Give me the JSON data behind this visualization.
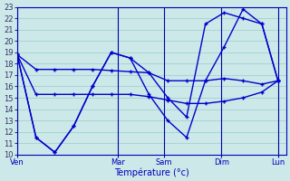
{
  "xlabel": "Température (°c)",
  "background_color": "#cce8e8",
  "grid_color": "#99cccc",
  "line_color": "#0000cc",
  "sep_color": "#0000aa",
  "ylim": [
    10,
    23
  ],
  "yticks": [
    10,
    11,
    12,
    13,
    14,
    15,
    16,
    17,
    18,
    19,
    20,
    21,
    22,
    23
  ],
  "day_labels": [
    "Ven",
    "Mar",
    "Sam",
    "Dim",
    "Lun"
  ],
  "day_positions": [
    0.0,
    0.375,
    0.545,
    0.76,
    0.97
  ],
  "series1_x": [
    0.0,
    0.07,
    0.14,
    0.21,
    0.28,
    0.35,
    0.42,
    0.49,
    0.56,
    0.63,
    0.7,
    0.77,
    0.84,
    0.91,
    0.97
  ],
  "series1_y": [
    18.8,
    17.5,
    17.5,
    17.5,
    17.5,
    17.4,
    17.3,
    17.2,
    16.5,
    16.5,
    16.5,
    16.7,
    16.5,
    16.2,
    16.5
  ],
  "series2_x": [
    0.0,
    0.07,
    0.14,
    0.21,
    0.28,
    0.35,
    0.42,
    0.49,
    0.56,
    0.63,
    0.7,
    0.77,
    0.84,
    0.91,
    0.97
  ],
  "series2_y": [
    18.8,
    15.3,
    15.3,
    15.3,
    15.3,
    15.3,
    15.3,
    15.1,
    14.8,
    14.5,
    14.5,
    14.7,
    15.0,
    15.5,
    16.5
  ],
  "series3_x": [
    0.0,
    0.07,
    0.14,
    0.21,
    0.28,
    0.35,
    0.42,
    0.49,
    0.56,
    0.63,
    0.7,
    0.77,
    0.84,
    0.91,
    0.97
  ],
  "series3_y": [
    18.8,
    11.5,
    10.2,
    12.5,
    16.0,
    19.0,
    18.5,
    17.2,
    15.0,
    13.3,
    21.5,
    22.5,
    22.0,
    21.5,
    16.5
  ],
  "series4_x": [
    0.0,
    0.07,
    0.14,
    0.21,
    0.28,
    0.35,
    0.42,
    0.49,
    0.56,
    0.63,
    0.7,
    0.77,
    0.84,
    0.91,
    0.97
  ],
  "series4_y": [
    18.8,
    11.5,
    10.2,
    12.5,
    16.0,
    19.0,
    18.5,
    15.3,
    13.0,
    11.5,
    16.5,
    19.5,
    22.8,
    21.5,
    16.5
  ]
}
